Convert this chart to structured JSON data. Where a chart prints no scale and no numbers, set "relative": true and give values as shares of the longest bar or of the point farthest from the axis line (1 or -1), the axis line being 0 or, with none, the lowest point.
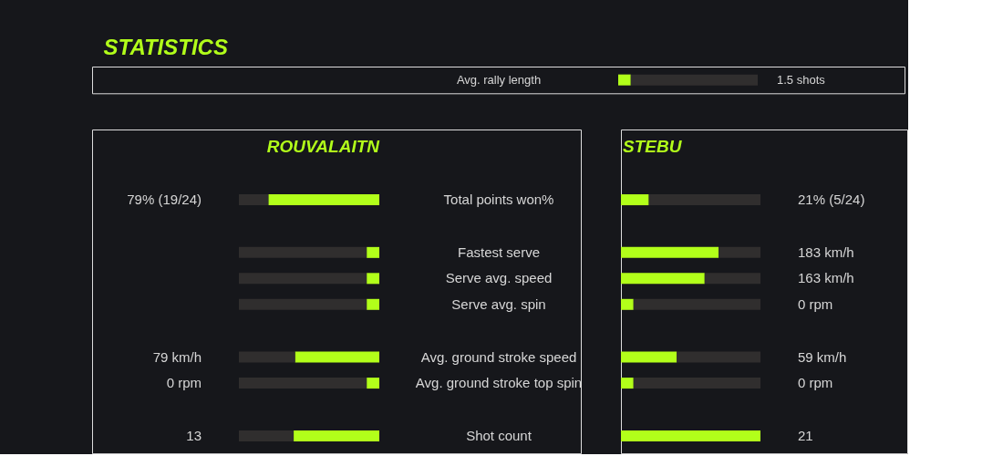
{
  "chart_data": [
    {
      "type": "bar",
      "orientation": "horizontal",
      "stacked": true,
      "relative": true,
      "categories": [
        "Avg. rally length"
      ],
      "series": [
        {
          "color": "#b2ff1a",
          "values": [
            0.09
          ]
        },
        {
          "color": "#302e2e",
          "values": [
            0.91
          ]
        }
      ],
      "annotations": [
        "1.5 shots"
      ]
    },
    {
      "type": "bar",
      "title": "STATISTICS",
      "orientation": "horizontal",
      "stacked": true,
      "relative": true,
      "legend": "top",
      "categories": [
        "Total points won%",
        "Fastest serve",
        "Serve avg. speed",
        "Serve avg. spin",
        "Avg. ground stroke speed",
        "Avg. ground stroke top spin",
        "Shot count"
      ],
      "series": [
        {
          "name": "ROUVALAITN",
          "color": "#b2ff1a",
          "values": [
            -0.79,
            -0.09,
            -0.09,
            -0.09,
            -0.6,
            -0.09,
            -0.61
          ]
        },
        {
          "color": "#302e2e",
          "values": [
            -0.21,
            -0.91,
            -0.91,
            -0.91,
            -0.4,
            -0.91,
            -0.39
          ]
        }
      ],
      "annotations": [
        "79% (19/24)",
        "79 km/h",
        "0 rpm",
        "13"
      ]
    },
    {
      "type": "bar",
      "orientation": "horizontal",
      "stacked": true,
      "relative": true,
      "legend": "top",
      "tick_labels": false,
      "categories": [
        null,
        null,
        null,
        null,
        null,
        null,
        null
      ],
      "series": [
        {
          "name": "STEBU",
          "color": "#b2ff1a",
          "values": [
            0.2,
            0.7,
            0.6,
            0.09,
            0.4,
            0.09,
            1.0
          ]
        },
        {
          "color": "#302e2e",
          "values": [
            0.8,
            0.3,
            0.4,
            0.91,
            0.6,
            0.91,
            null
          ]
        }
      ],
      "annotations": [
        "21% (5/24)",
        "183 km/h",
        "163 km/h",
        "0 rpm",
        "59 km/h",
        "0 rpm",
        "21"
      ]
    }
  ]
}
